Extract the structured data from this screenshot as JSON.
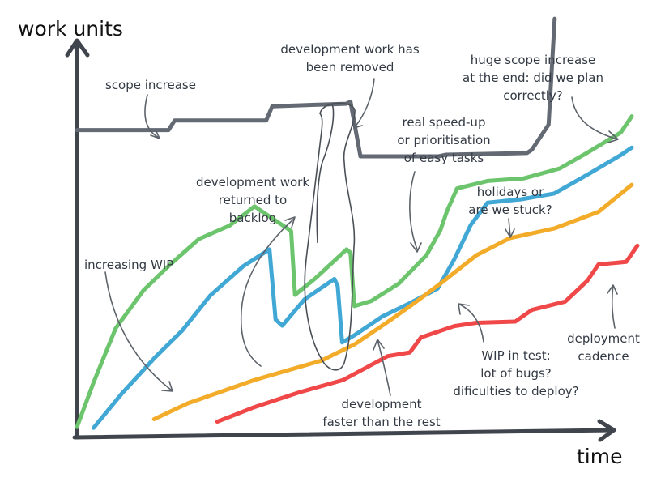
{
  "chart_data": {
    "type": "line",
    "xlabel": "time",
    "ylabel": "work units",
    "xlim": [
      0,
      100
    ],
    "ylim": [
      0,
      100
    ],
    "grid": false,
    "legend": "none",
    "series": [
      {
        "color": "#646a73",
        "points": [
          [
            0,
            72.7
          ],
          [
            16.5,
            72.7
          ],
          [
            17.6,
            75.0
          ],
          [
            34.1,
            75.0
          ],
          [
            35.2,
            78.4
          ],
          [
            48.5,
            79.0
          ],
          [
            49.3,
            79.5
          ],
          [
            51.1,
            66.4
          ],
          [
            65.2,
            66.4
          ],
          [
            66.5,
            66.8
          ],
          [
            81.1,
            67.2
          ],
          [
            82.0,
            68.0
          ],
          [
            85.0,
            74.0
          ],
          [
            86.1,
            99.4
          ]
        ]
      },
      {
        "color": "#6cc46c",
        "points": [
          [
            0,
            1.5
          ],
          [
            3.0,
            12.2
          ],
          [
            7.0,
            25.2
          ],
          [
            12.0,
            34.3
          ],
          [
            16.5,
            40.1
          ],
          [
            22.0,
            46.6
          ],
          [
            27.5,
            49.8
          ],
          [
            32.0,
            54.4
          ],
          [
            38.6,
            48.5
          ],
          [
            39.3,
            33.2
          ],
          [
            43.0,
            37.2
          ],
          [
            48.6,
            44.1
          ],
          [
            49.3,
            43.3
          ],
          [
            50.0,
            30.5
          ],
          [
            53.0,
            31.7
          ],
          [
            58.0,
            35.9
          ],
          [
            63.0,
            42.7
          ],
          [
            65.5,
            48.7
          ],
          [
            66.7,
            53.3
          ],
          [
            68.5,
            58.7
          ],
          [
            74.0,
            60.5
          ],
          [
            80.5,
            61.1
          ],
          [
            87.0,
            63.5
          ],
          [
            92.0,
            67.3
          ],
          [
            98.0,
            72.1
          ],
          [
            100,
            76.0
          ]
        ]
      },
      {
        "color": "#41a7d4",
        "points": [
          [
            3.0,
            1.3
          ],
          [
            8.0,
            9.4
          ],
          [
            14.0,
            18.1
          ],
          [
            19.0,
            24.7
          ],
          [
            24.0,
            33.0
          ],
          [
            30.0,
            40.1
          ],
          [
            34.7,
            44.1
          ],
          [
            35.8,
            27.3
          ],
          [
            37.0,
            25.8
          ],
          [
            41.0,
            32.1
          ],
          [
            46.4,
            37.0
          ],
          [
            47.0,
            35.3
          ],
          [
            47.8,
            21.8
          ],
          [
            50.0,
            23.5
          ],
          [
            55.0,
            28.0
          ],
          [
            60.0,
            31.2
          ],
          [
            65.0,
            34.7
          ],
          [
            68.0,
            41.7
          ],
          [
            71.0,
            50.0
          ],
          [
            74.0,
            55.3
          ],
          [
            80.0,
            56.1
          ],
          [
            86.0,
            57.5
          ],
          [
            92.0,
            62.0
          ],
          [
            98.0,
            66.7
          ],
          [
            100,
            68.5
          ]
        ]
      },
      {
        "color": "#f2ac2a",
        "points": [
          [
            13.9,
            3.4
          ],
          [
            20.0,
            7.2
          ],
          [
            26.0,
            10.0
          ],
          [
            32.0,
            12.8
          ],
          [
            38.0,
            15.1
          ],
          [
            44.0,
            17.4
          ],
          [
            50.0,
            21.3
          ],
          [
            56.0,
            26.7
          ],
          [
            61.0,
            31.4
          ],
          [
            66.0,
            36.4
          ],
          [
            72.0,
            42.7
          ],
          [
            78.0,
            46.8
          ],
          [
            86.0,
            49.1
          ],
          [
            94.0,
            53.1
          ],
          [
            100,
            59.6
          ]
        ]
      },
      {
        "color": "#f04848",
        "points": [
          [
            25.3,
            2.8
          ],
          [
            32.0,
            6.3
          ],
          [
            40.0,
            9.8
          ],
          [
            48.0,
            12.8
          ],
          [
            56.0,
            18.5
          ],
          [
            60.0,
            19.4
          ],
          [
            62.0,
            23.0
          ],
          [
            68.0,
            25.7
          ],
          [
            72.0,
            26.5
          ],
          [
            79.0,
            26.8
          ],
          [
            82.0,
            29.6
          ],
          [
            88.0,
            31.6
          ],
          [
            92.0,
            36.6
          ],
          [
            94.0,
            40.5
          ],
          [
            99.0,
            41.1
          ],
          [
            101,
            45.0
          ]
        ]
      }
    ],
    "annotations": [
      "scope increase",
      "development work has",
      "been removed",
      "huge scope increase",
      "at the end: did we plan",
      "correctly?",
      "real speed-up",
      "or prioritisation",
      "of easy tasks",
      "development work",
      "returned to",
      "backlog",
      "holidays or",
      "are we stuck?",
      "increasing WIP",
      "WIP in test:",
      "lot of bugs?",
      "dificulties to deploy?",
      "deployment",
      "cadence",
      "development",
      "faster than the rest"
    ]
  }
}
